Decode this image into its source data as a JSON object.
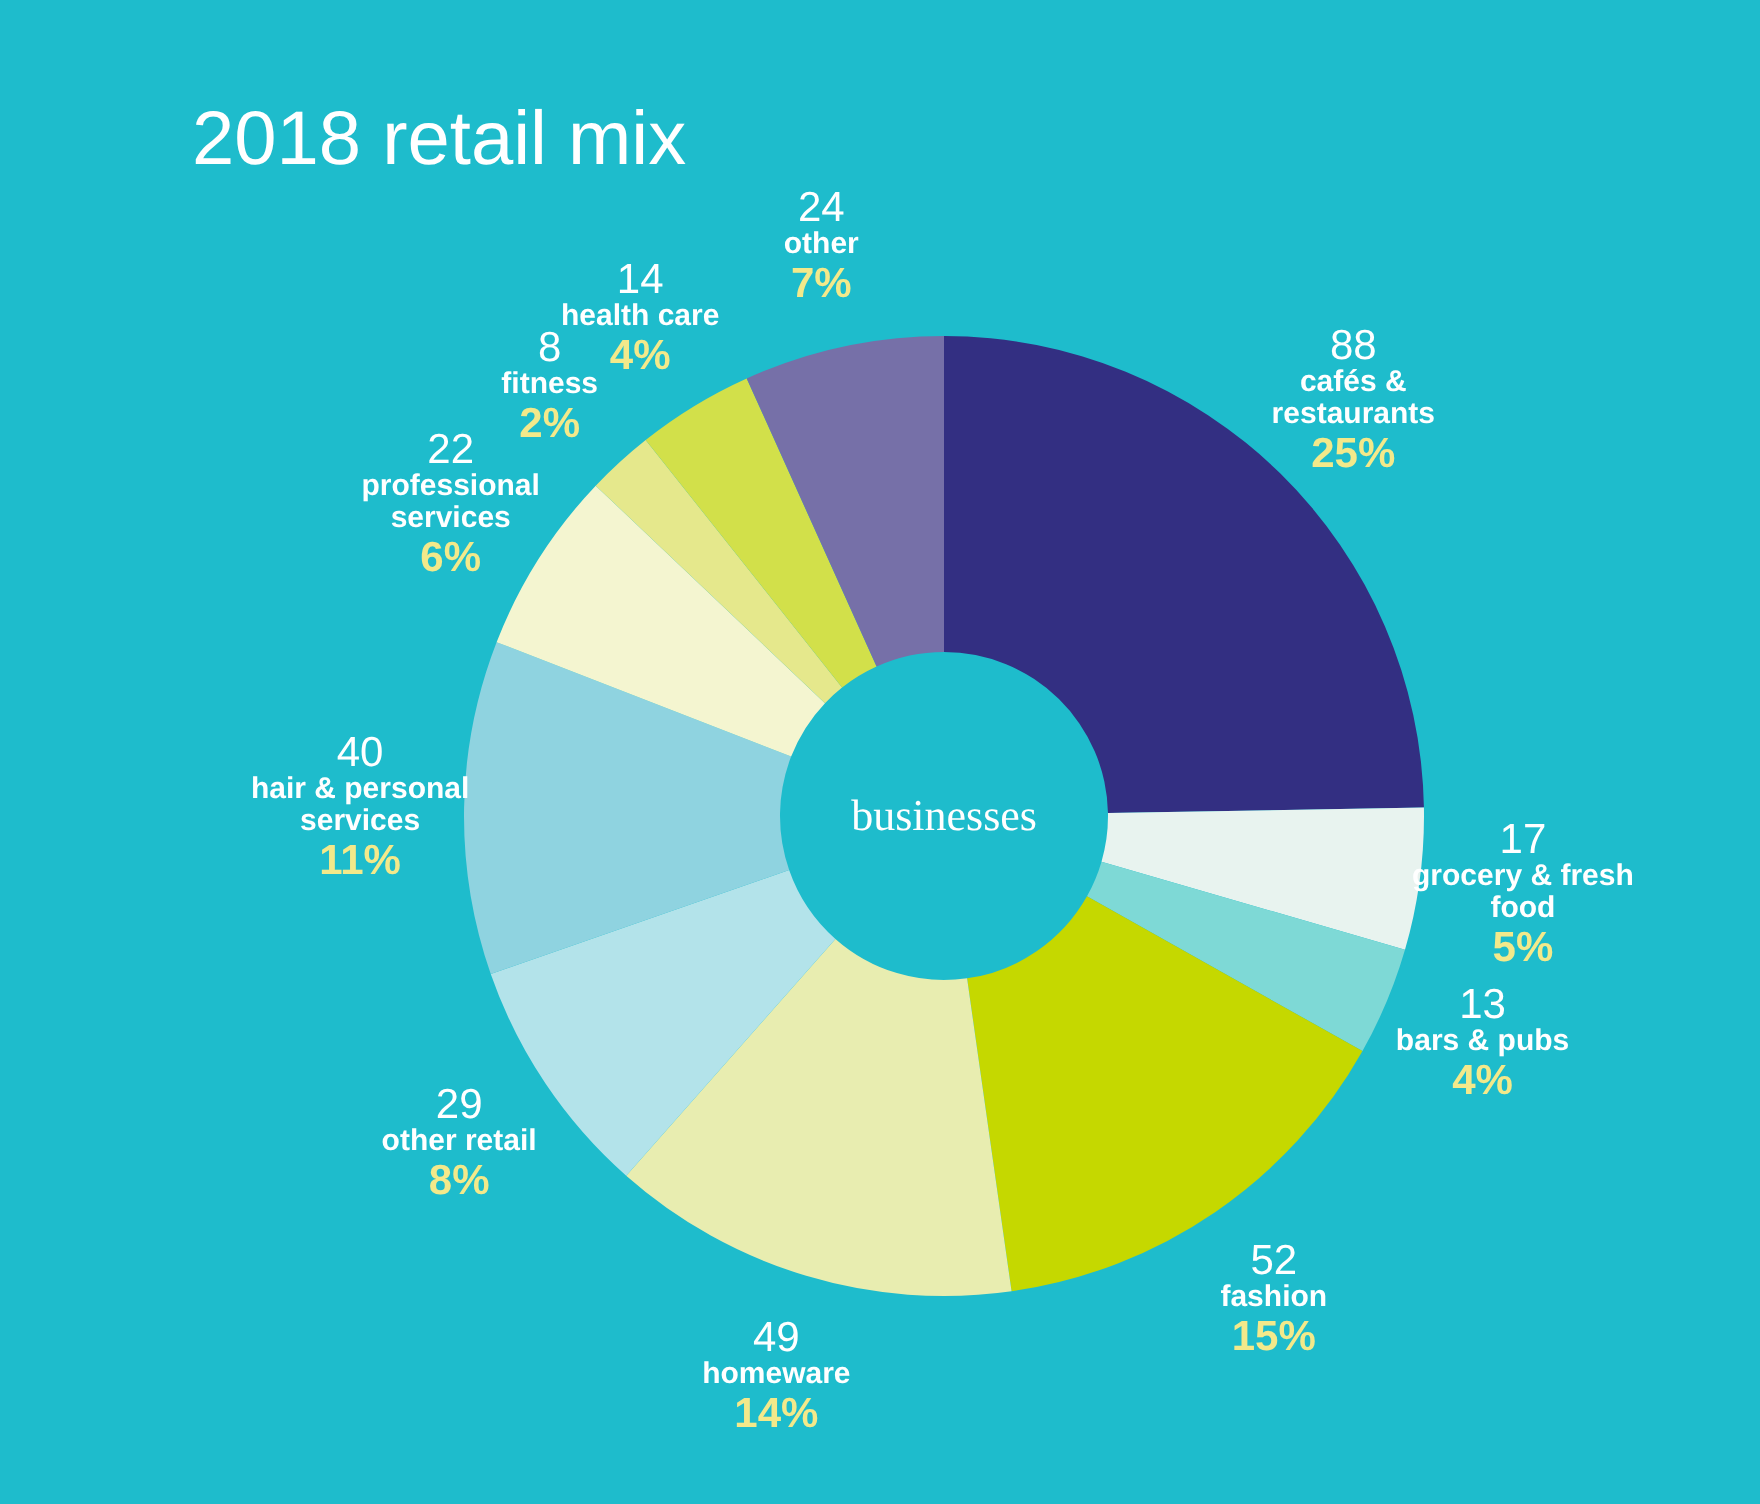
{
  "chart_data": {
    "type": "donut",
    "title": "2018 retail mix",
    "categories": [
      "cafés & restaurants",
      "grocery & fresh food",
      "bars & pubs",
      "fashion",
      "homeware",
      "other retail",
      "hair & personal services",
      "professional services",
      "fitness",
      "health care",
      "other"
    ],
    "values": [
      88,
      17,
      13,
      52,
      49,
      29,
      40,
      22,
      8,
      14,
      24
    ],
    "colors": [
      "#332f82",
      "#e8f3ef",
      "#7ed9d6",
      "#c5d800",
      "#e8edb0",
      "#b3e3ea",
      "#8fd3e0",
      "#f4f5d0",
      "#e5e88c",
      "#d2e04a",
      "#7670a8"
    ],
    "data_labels": true,
    "annotations": [
      "businesses",
      {
        "text": "25%",
        "x": "cafés & restaurants"
      },
      {
        "text": "5%",
        "x": "grocery & fresh food"
      },
      {
        "text": "4%",
        "x": "bars & pubs"
      },
      {
        "text": "15%",
        "x": "fashion"
      },
      {
        "text": "14%",
        "x": "homeware"
      },
      {
        "text": "8%",
        "x": "other retail"
      },
      {
        "text": "11%",
        "x": "hair & personal services"
      },
      {
        "text": "6%",
        "x": "professional services"
      },
      {
        "text": "2%",
        "x": "fitness"
      },
      {
        "text": "4%",
        "x": "health care"
      },
      {
        "text": "7%",
        "x": "other"
      }
    ]
  }
}
